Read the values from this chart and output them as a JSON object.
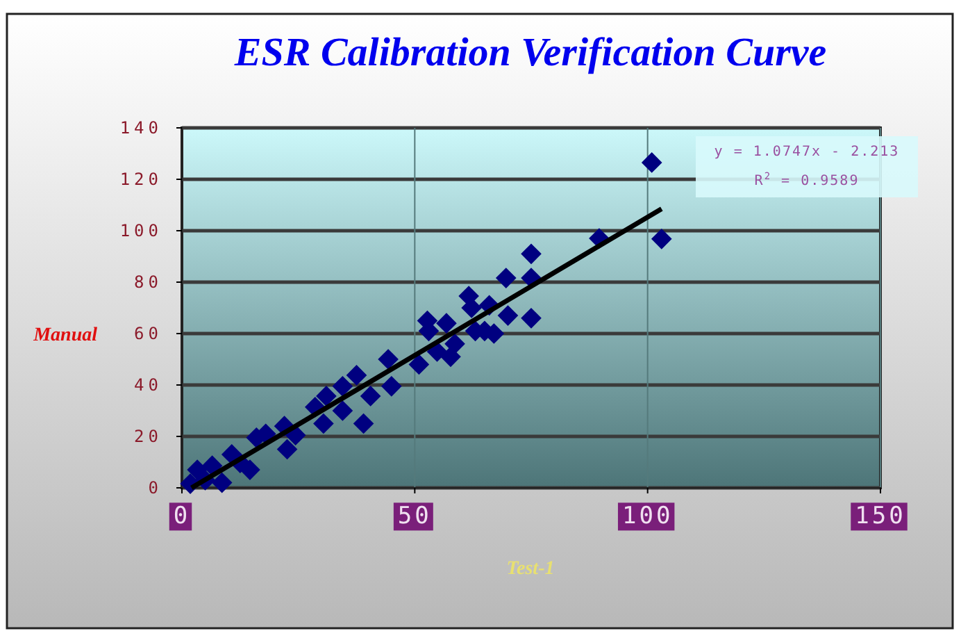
{
  "chart_data": {
    "type": "scatter",
    "title": "ESR Calibration Verification Curve",
    "xlabel": "Test-1",
    "ylabel": "Manual",
    "xlim": [
      0,
      150
    ],
    "xticks": [
      0,
      50,
      100,
      150
    ],
    "ylim": [
      0,
      140
    ],
    "yticks": [
      0,
      20,
      40,
      60,
      80,
      100,
      120,
      140
    ],
    "grid": true,
    "marker": "diamond",
    "annotations": [
      "y = 1.0747x - 2.213",
      "R$^{2}$ = 0.9589"
    ],
    "series": [
      {
        "color": "#000080",
        "x": [
          1.8,
          5,
          3.3,
          6.5,
          8.6,
          10.7,
          12.5,
          14.6,
          16,
          18,
          22,
          22.6,
          24.4,
          28.6,
          30.4,
          31,
          34.5,
          34.5,
          37.5,
          39,
          40.5,
          44.3,
          45,
          50.9,
          52.7,
          53,
          54.8,
          56.8,
          57.7,
          58.6,
          61.6,
          62.2,
          63,
          65,
          66,
          67,
          69.6,
          70,
          75,
          75,
          75,
          89.6,
          100.9,
          103
        ],
        "values": [
          1.6,
          3,
          7,
          8.6,
          2,
          13,
          9.7,
          7,
          19.5,
          21,
          24,
          15,
          20.5,
          31.4,
          25,
          35.7,
          39.5,
          30,
          43.8,
          25,
          35.7,
          50,
          39.5,
          48,
          65,
          61,
          53,
          64,
          51,
          56,
          74.6,
          70,
          61,
          61,
          71,
          60,
          81.6,
          67,
          91,
          81.6,
          66,
          97,
          126.5,
          96.8
        ]
      },
      {
        "type": "line",
        "color": "#000000",
        "line_style": "solid",
        "marker": "none",
        "x": [
          2.06,
          103
        ],
        "values": [
          0,
          108.5
        ]
      }
    ]
  }
}
